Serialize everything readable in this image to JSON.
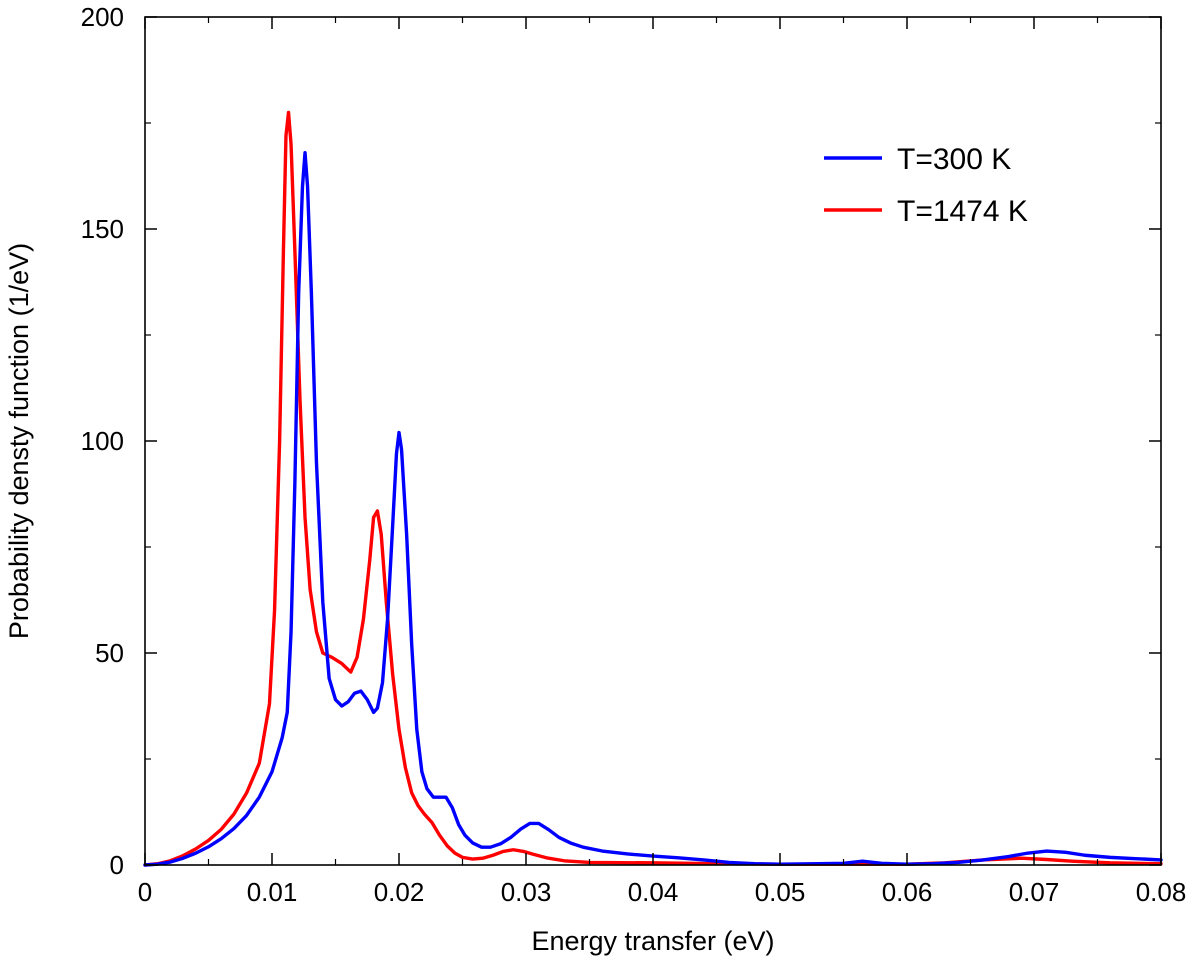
{
  "chart_data": {
    "type": "line",
    "title": "",
    "xlabel": "Energy transfer (eV)",
    "ylabel": "Probability densty function (1/eV)",
    "xlim": [
      0,
      0.08
    ],
    "ylim": [
      0,
      200
    ],
    "xticks": [
      0,
      0.01,
      0.02,
      0.03,
      0.04,
      0.05,
      0.06,
      0.07,
      0.08
    ],
    "xtick_labels": [
      "0",
      "0.01",
      "0.02",
      "0.03",
      "0.04",
      "0.05",
      "0.06",
      "0.07",
      "0.08"
    ],
    "yticks": [
      0,
      50,
      100,
      150,
      200
    ],
    "ytick_labels": [
      "0",
      "50",
      "100",
      "150",
      "200"
    ],
    "grid": false,
    "legend_position": "top-right",
    "series": [
      {
        "name": "T=300 K",
        "color": "#0000ff",
        "points": [
          [
            0,
            0
          ],
          [
            0.001,
            0.2
          ],
          [
            0.002,
            0.7
          ],
          [
            0.003,
            1.6
          ],
          [
            0.004,
            2.8
          ],
          [
            0.005,
            4.3
          ],
          [
            0.006,
            6.2
          ],
          [
            0.007,
            8.6
          ],
          [
            0.008,
            11.7
          ],
          [
            0.009,
            16
          ],
          [
            0.01,
            22
          ],
          [
            0.0108,
            30
          ],
          [
            0.0112,
            36
          ],
          [
            0.0115,
            55
          ],
          [
            0.0118,
            90
          ],
          [
            0.0121,
            135
          ],
          [
            0.0124,
            160
          ],
          [
            0.0126,
            168
          ],
          [
            0.0128,
            160
          ],
          [
            0.0131,
            135
          ],
          [
            0.0135,
            95
          ],
          [
            0.014,
            62
          ],
          [
            0.0145,
            44
          ],
          [
            0.015,
            39
          ],
          [
            0.0155,
            37.5
          ],
          [
            0.016,
            38.5
          ],
          [
            0.0165,
            40.5
          ],
          [
            0.017,
            41
          ],
          [
            0.0175,
            39
          ],
          [
            0.018,
            36
          ],
          [
            0.0183,
            37
          ],
          [
            0.0187,
            43
          ],
          [
            0.0191,
            58
          ],
          [
            0.0195,
            80
          ],
          [
            0.0198,
            97
          ],
          [
            0.02,
            102
          ],
          [
            0.0202,
            98
          ],
          [
            0.0206,
            78
          ],
          [
            0.021,
            52
          ],
          [
            0.0214,
            32
          ],
          [
            0.0218,
            22
          ],
          [
            0.0222,
            18
          ],
          [
            0.0227,
            16
          ],
          [
            0.0232,
            16
          ],
          [
            0.0237,
            16
          ],
          [
            0.0242,
            13.5
          ],
          [
            0.0247,
            9.5
          ],
          [
            0.0252,
            7
          ],
          [
            0.0258,
            5.2
          ],
          [
            0.0265,
            4.2
          ],
          [
            0.0272,
            4.2
          ],
          [
            0.028,
            5
          ],
          [
            0.0288,
            6.5
          ],
          [
            0.0296,
            8.5
          ],
          [
            0.0303,
            9.8
          ],
          [
            0.031,
            9.8
          ],
          [
            0.0318,
            8.3
          ],
          [
            0.0326,
            6.5
          ],
          [
            0.0335,
            5.2
          ],
          [
            0.0345,
            4.2
          ],
          [
            0.036,
            3.3
          ],
          [
            0.038,
            2.6
          ],
          [
            0.04,
            2.1
          ],
          [
            0.042,
            1.7
          ],
          [
            0.044,
            1.2
          ],
          [
            0.046,
            0.6
          ],
          [
            0.048,
            0.3
          ],
          [
            0.05,
            0.2
          ],
          [
            0.053,
            0.3
          ],
          [
            0.055,
            0.4
          ],
          [
            0.0565,
            0.9
          ],
          [
            0.058,
            0.4
          ],
          [
            0.06,
            0.2
          ],
          [
            0.062,
            0.3
          ],
          [
            0.064,
            0.6
          ],
          [
            0.066,
            1.2
          ],
          [
            0.068,
            2
          ],
          [
            0.0695,
            2.8
          ],
          [
            0.071,
            3.3
          ],
          [
            0.0725,
            3
          ],
          [
            0.074,
            2.3
          ],
          [
            0.076,
            1.8
          ],
          [
            0.078,
            1.5
          ],
          [
            0.08,
            1.2
          ]
        ]
      },
      {
        "name": "T=1474 K",
        "color": "#ff0000",
        "points": [
          [
            0,
            0
          ],
          [
            0.001,
            0.3
          ],
          [
            0.002,
            1
          ],
          [
            0.003,
            2.2
          ],
          [
            0.004,
            3.8
          ],
          [
            0.005,
            5.8
          ],
          [
            0.006,
            8.4
          ],
          [
            0.007,
            12
          ],
          [
            0.008,
            17
          ],
          [
            0.009,
            24
          ],
          [
            0.0098,
            38
          ],
          [
            0.0102,
            60
          ],
          [
            0.0106,
            100
          ],
          [
            0.0109,
            145
          ],
          [
            0.0111,
            172
          ],
          [
            0.0113,
            177.5
          ],
          [
            0.0115,
            170
          ],
          [
            0.0118,
            145
          ],
          [
            0.0122,
            110
          ],
          [
            0.0126,
            82
          ],
          [
            0.013,
            65
          ],
          [
            0.0135,
            55
          ],
          [
            0.014,
            50
          ],
          [
            0.0147,
            49
          ],
          [
            0.0155,
            47.5
          ],
          [
            0.0162,
            45.5
          ],
          [
            0.0167,
            49
          ],
          [
            0.0172,
            58
          ],
          [
            0.0177,
            72
          ],
          [
            0.018,
            82
          ],
          [
            0.0183,
            83.5
          ],
          [
            0.0186,
            78
          ],
          [
            0.019,
            62
          ],
          [
            0.0195,
            45
          ],
          [
            0.02,
            32
          ],
          [
            0.0205,
            23
          ],
          [
            0.021,
            17
          ],
          [
            0.0215,
            14
          ],
          [
            0.022,
            12
          ],
          [
            0.0226,
            10
          ],
          [
            0.0232,
            7
          ],
          [
            0.0238,
            4.5
          ],
          [
            0.0244,
            2.8
          ],
          [
            0.025,
            1.8
          ],
          [
            0.0258,
            1.4
          ],
          [
            0.0266,
            1.6
          ],
          [
            0.0274,
            2.3
          ],
          [
            0.0282,
            3.2
          ],
          [
            0.029,
            3.6
          ],
          [
            0.0298,
            3.2
          ],
          [
            0.0306,
            2.5
          ],
          [
            0.0316,
            1.7
          ],
          [
            0.033,
            1
          ],
          [
            0.035,
            0.6
          ],
          [
            0.04,
            0.5
          ],
          [
            0.045,
            0.3
          ],
          [
            0.05,
            0.2
          ],
          [
            0.055,
            0.2
          ],
          [
            0.06,
            0.2
          ],
          [
            0.063,
            0.5
          ],
          [
            0.066,
            1.2
          ],
          [
            0.069,
            1.6
          ],
          [
            0.071,
            1.3
          ],
          [
            0.073,
            0.9
          ],
          [
            0.076,
            0.5
          ],
          [
            0.08,
            0.3
          ]
        ]
      }
    ]
  }
}
